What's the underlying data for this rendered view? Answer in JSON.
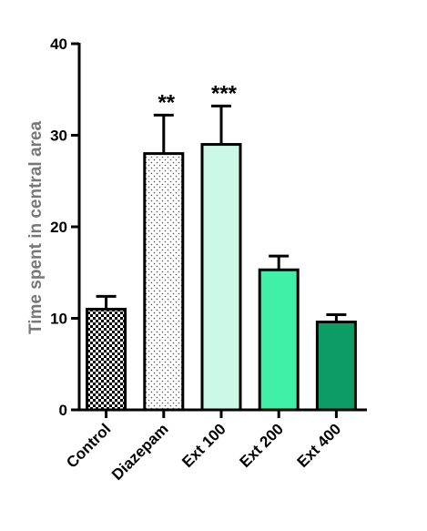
{
  "chart_data": {
    "type": "bar",
    "title": "",
    "xlabel": "",
    "ylabel": "Time spent in central area",
    "ylim": [
      0,
      40
    ],
    "yticks": [
      0,
      10,
      20,
      30,
      40
    ],
    "categories": [
      "Control",
      "Diazepam",
      "Ext 100",
      "Ext 200",
      "Ext 400"
    ],
    "values": [
      11,
      28,
      29,
      15.3,
      9.6
    ],
    "errors": [
      1.4,
      4.2,
      4.2,
      1.5,
      0.8
    ],
    "significance": [
      "",
      "**",
      "***",
      "",
      ""
    ],
    "fills": [
      {
        "pattern": "checker",
        "color": "#000000"
      },
      {
        "pattern": "dots",
        "color": "#555555"
      },
      {
        "pattern": "solid",
        "color": "#ccf8e6"
      },
      {
        "pattern": "solid",
        "color": "#3ff0a6"
      },
      {
        "pattern": "solid",
        "color": "#0e9c66"
      }
    ],
    "grid": false
  }
}
